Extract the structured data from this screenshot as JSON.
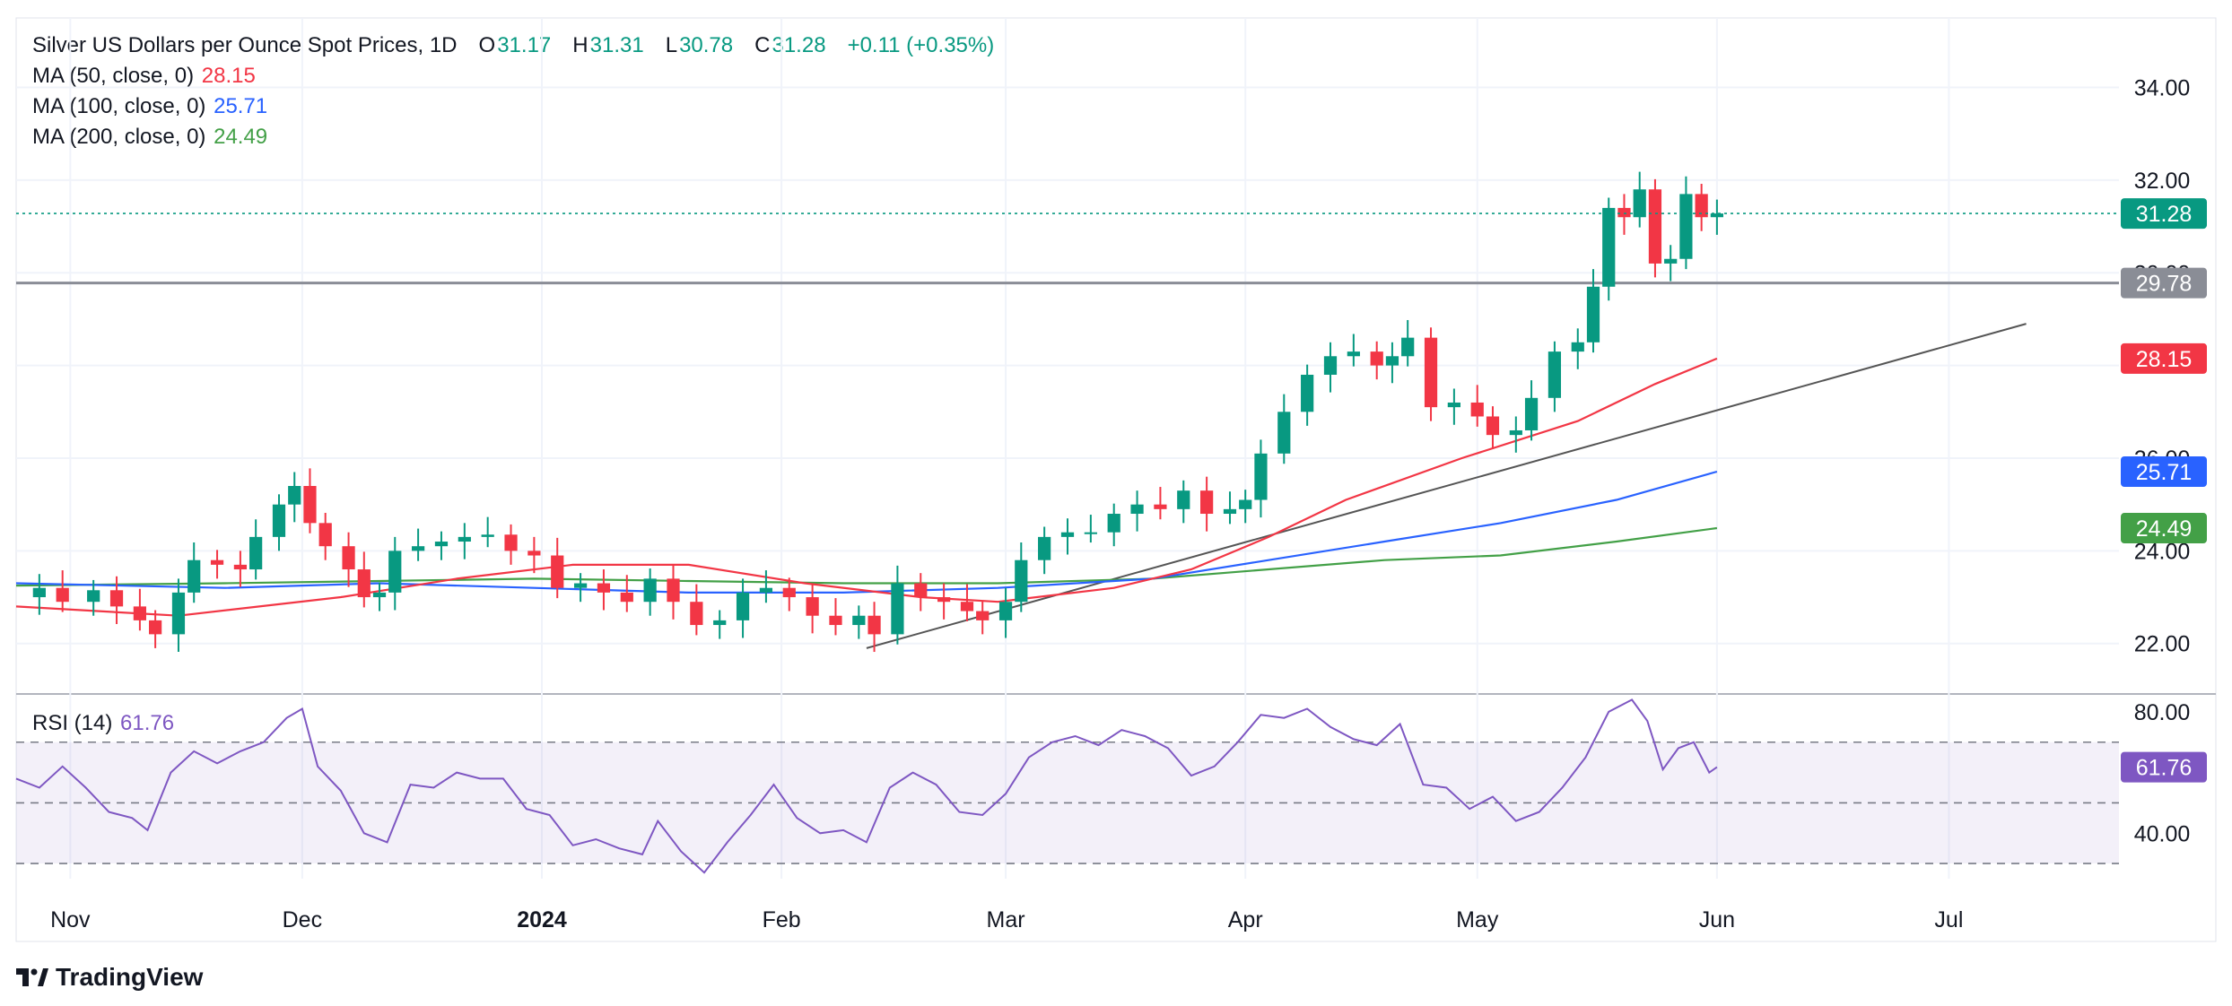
{
  "header": {
    "symbol": "Silver US Dollars per Ounce Spot Prices, 1D",
    "o_label": "O",
    "o_value": "31.17",
    "h_label": "H",
    "h_value": "31.31",
    "l_label": "L",
    "l_value": "30.78",
    "c_label": "C",
    "c_value": "31.28",
    "change": "+0.11 (+0.35%)"
  },
  "indicators": {
    "ma50": {
      "label": "MA (50, close, 0)",
      "value": "28.15",
      "color": "#f23645"
    },
    "ma100": {
      "label": "MA (100, close, 0)",
      "value": "25.71",
      "color": "#2962ff"
    },
    "ma200": {
      "label": "MA (200, close, 0)",
      "value": "24.49",
      "color": "#43a047"
    },
    "rsi": {
      "label": "RSI (14)",
      "value": "61.76",
      "color": "#7e57c2"
    }
  },
  "branding": {
    "logo_text": "TradingView",
    "icon": "tradingview-logo-icon"
  },
  "colors": {
    "up": "#089981",
    "down": "#f23645",
    "grid": "#f0f3fa",
    "axis_text": "#131722",
    "resistance": "#8a8d96",
    "trendline": "#555555"
  },
  "chart_data": {
    "type": "candlestick",
    "title": "Silver US Dollars per Ounce Spot Prices, 1D",
    "price_axis": {
      "ticks": [
        "34.00",
        "32.00",
        "30.00",
        "28.00",
        "26.00",
        "24.00",
        "22.00"
      ],
      "range": [
        20.95,
        35.5
      ]
    },
    "rsi_axis": {
      "ticks": [
        "80.00",
        "40.00"
      ],
      "range": [
        25,
        85
      ],
      "levels": [
        70,
        50,
        30
      ]
    },
    "time_axis": {
      "labels": [
        "Nov",
        "Dec",
        "2024",
        "Feb",
        "Mar",
        "Apr",
        "May",
        "Jun",
        "Jul"
      ],
      "label_days": [
        0,
        30,
        61,
        92,
        121,
        152,
        182,
        213,
        243
      ],
      "day_range": [
        -7,
        265
      ]
    },
    "badges": [
      {
        "name": "last-price",
        "text": "31.28",
        "value": 31.28,
        "color": "#089981"
      },
      {
        "name": "resistance-level",
        "text": "29.78",
        "value": 29.78,
        "color": "#8a8d96"
      },
      {
        "name": "ma50",
        "text": "28.15",
        "value": 28.15,
        "color": "#f23645"
      },
      {
        "name": "ma100",
        "text": "25.71",
        "value": 25.71,
        "color": "#2962ff"
      },
      {
        "name": "ma200",
        "text": "24.49",
        "value": 24.49,
        "color": "#43a047"
      }
    ],
    "rsi_badge": {
      "text": "61.76",
      "value": 61.76,
      "color": "#7e57c2"
    },
    "resistance_line": {
      "value": 29.78,
      "label": "29.78"
    },
    "trendline": {
      "start": {
        "day": 103,
        "price": 21.9
      },
      "end": {
        "day": 253,
        "price": 28.9
      }
    },
    "price_points": [
      {
        "day": -7,
        "price": 23.0
      },
      {
        "day": -4,
        "price": 23.2
      },
      {
        "day": -1,
        "price": 22.9
      },
      {
        "day": 3,
        "price": 23.15
      },
      {
        "day": 6,
        "price": 22.8
      },
      {
        "day": 9,
        "price": 22.5
      },
      {
        "day": 11,
        "price": 22.2
      },
      {
        "day": 14,
        "price": 23.1
      },
      {
        "day": 16,
        "price": 23.8
      },
      {
        "day": 19,
        "price": 23.7
      },
      {
        "day": 22,
        "price": 23.6
      },
      {
        "day": 24,
        "price": 24.3
      },
      {
        "day": 27,
        "price": 25.0
      },
      {
        "day": 29,
        "price": 25.4
      },
      {
        "day": 31,
        "price": 24.6
      },
      {
        "day": 33,
        "price": 24.1
      },
      {
        "day": 36,
        "price": 23.6
      },
      {
        "day": 38,
        "price": 23.0
      },
      {
        "day": 40,
        "price": 23.1
      },
      {
        "day": 42,
        "price": 24.0
      },
      {
        "day": 45,
        "price": 24.1
      },
      {
        "day": 48,
        "price": 24.2
      },
      {
        "day": 51,
        "price": 24.3
      },
      {
        "day": 54,
        "price": 24.35
      },
      {
        "day": 57,
        "price": 24.0
      },
      {
        "day": 60,
        "price": 23.9
      },
      {
        "day": 63,
        "price": 23.2
      },
      {
        "day": 66,
        "price": 23.3
      },
      {
        "day": 69,
        "price": 23.1
      },
      {
        "day": 72,
        "price": 22.9
      },
      {
        "day": 75,
        "price": 23.4
      },
      {
        "day": 78,
        "price": 22.9
      },
      {
        "day": 81,
        "price": 22.4
      },
      {
        "day": 84,
        "price": 22.5
      },
      {
        "day": 87,
        "price": 23.1
      },
      {
        "day": 90,
        "price": 23.2
      },
      {
        "day": 93,
        "price": 23.0
      },
      {
        "day": 96,
        "price": 22.6
      },
      {
        "day": 99,
        "price": 22.4
      },
      {
        "day": 102,
        "price": 22.6
      },
      {
        "day": 104,
        "price": 22.2
      },
      {
        "day": 107,
        "price": 23.3
      },
      {
        "day": 110,
        "price": 23.0
      },
      {
        "day": 113,
        "price": 22.9
      },
      {
        "day": 116,
        "price": 22.7
      },
      {
        "day": 118,
        "price": 22.5
      },
      {
        "day": 121,
        "price": 22.9
      },
      {
        "day": 123,
        "price": 23.8
      },
      {
        "day": 126,
        "price": 24.3
      },
      {
        "day": 129,
        "price": 24.4
      },
      {
        "day": 132,
        "price": 24.4
      },
      {
        "day": 135,
        "price": 24.8
      },
      {
        "day": 138,
        "price": 25.0
      },
      {
        "day": 141,
        "price": 24.9
      },
      {
        "day": 144,
        "price": 25.3
      },
      {
        "day": 147,
        "price": 24.8
      },
      {
        "day": 150,
        "price": 24.9
      },
      {
        "day": 152,
        "price": 25.1
      },
      {
        "day": 154,
        "price": 26.1
      },
      {
        "day": 157,
        "price": 27.0
      },
      {
        "day": 160,
        "price": 27.8
      },
      {
        "day": 163,
        "price": 28.2
      },
      {
        "day": 166,
        "price": 28.3
      },
      {
        "day": 169,
        "price": 28.0
      },
      {
        "day": 171,
        "price": 28.2
      },
      {
        "day": 173,
        "price": 28.6
      },
      {
        "day": 176,
        "price": 27.1
      },
      {
        "day": 179,
        "price": 27.2
      },
      {
        "day": 182,
        "price": 26.9
      },
      {
        "day": 184,
        "price": 26.5
      },
      {
        "day": 187,
        "price": 26.6
      },
      {
        "day": 189,
        "price": 27.3
      },
      {
        "day": 192,
        "price": 28.3
      },
      {
        "day": 195,
        "price": 28.5
      },
      {
        "day": 197,
        "price": 29.7
      },
      {
        "day": 199,
        "price": 31.4
      },
      {
        "day": 201,
        "price": 31.2
      },
      {
        "day": 203,
        "price": 31.8
      },
      {
        "day": 205,
        "price": 30.2
      },
      {
        "day": 207,
        "price": 30.3
      },
      {
        "day": 209,
        "price": 31.7
      },
      {
        "day": 211,
        "price": 31.2
      },
      {
        "day": 213,
        "price": 31.28
      }
    ],
    "candle_style": {
      "up": "#089981",
      "down": "#f23645"
    },
    "ma50": {
      "name": "MA 50",
      "points": [
        [
          -7,
          22.8
        ],
        [
          14,
          22.6
        ],
        [
          35,
          23.0
        ],
        [
          50,
          23.4
        ],
        [
          65,
          23.7
        ],
        [
          80,
          23.7
        ],
        [
          95,
          23.3
        ],
        [
          110,
          23.0
        ],
        [
          120,
          22.9
        ],
        [
          135,
          23.2
        ],
        [
          145,
          23.6
        ],
        [
          155,
          24.3
        ],
        [
          165,
          25.1
        ],
        [
          180,
          26.0
        ],
        [
          195,
          26.8
        ],
        [
          205,
          27.6
        ],
        [
          213,
          28.15
        ]
      ],
      "color": "#f23645"
    },
    "ma100": {
      "name": "MA 100",
      "points": [
        [
          -7,
          23.3
        ],
        [
          20,
          23.2
        ],
        [
          40,
          23.3
        ],
        [
          60,
          23.2
        ],
        [
          80,
          23.1
        ],
        [
          100,
          23.1
        ],
        [
          120,
          23.2
        ],
        [
          140,
          23.4
        ],
        [
          155,
          23.8
        ],
        [
          170,
          24.2
        ],
        [
          185,
          24.6
        ],
        [
          200,
          25.1
        ],
        [
          213,
          25.71
        ]
      ],
      "color": "#2962ff"
    },
    "ma200": {
      "name": "MA 200",
      "points": [
        [
          -7,
          23.25
        ],
        [
          20,
          23.3
        ],
        [
          40,
          23.35
        ],
        [
          60,
          23.4
        ],
        [
          80,
          23.35
        ],
        [
          100,
          23.3
        ],
        [
          120,
          23.3
        ],
        [
          140,
          23.4
        ],
        [
          155,
          23.6
        ],
        [
          170,
          23.8
        ],
        [
          185,
          23.9
        ],
        [
          200,
          24.2
        ],
        [
          213,
          24.49
        ]
      ],
      "color": "#43a047"
    },
    "rsi": {
      "name": "RSI (14)",
      "points": [
        [
          -7,
          58
        ],
        [
          -4,
          55
        ],
        [
          -1,
          62
        ],
        [
          2,
          55
        ],
        [
          5,
          47
        ],
        [
          8,
          45
        ],
        [
          10,
          41
        ],
        [
          13,
          60
        ],
        [
          16,
          67
        ],
        [
          19,
          63
        ],
        [
          22,
          67
        ],
        [
          25,
          70
        ],
        [
          28,
          78
        ],
        [
          30,
          81
        ],
        [
          32,
          62
        ],
        [
          35,
          54
        ],
        [
          38,
          40
        ],
        [
          41,
          37
        ],
        [
          44,
          56
        ],
        [
          47,
          55
        ],
        [
          50,
          60
        ],
        [
          53,
          58
        ],
        [
          56,
          58
        ],
        [
          59,
          48
        ],
        [
          62,
          46
        ],
        [
          65,
          36
        ],
        [
          68,
          38
        ],
        [
          71,
          35
        ],
        [
          74,
          33
        ],
        [
          76,
          44
        ],
        [
          79,
          34
        ],
        [
          82,
          27
        ],
        [
          85,
          37
        ],
        [
          88,
          46
        ],
        [
          91,
          56
        ],
        [
          94,
          45
        ],
        [
          97,
          40
        ],
        [
          100,
          41
        ],
        [
          103,
          37
        ],
        [
          106,
          55
        ],
        [
          109,
          60
        ],
        [
          112,
          56
        ],
        [
          115,
          47
        ],
        [
          118,
          46
        ],
        [
          121,
          53
        ],
        [
          124,
          65
        ],
        [
          127,
          70
        ],
        [
          130,
          72
        ],
        [
          133,
          69
        ],
        [
          136,
          74
        ],
        [
          139,
          72
        ],
        [
          142,
          68
        ],
        [
          145,
          59
        ],
        [
          148,
          62
        ],
        [
          151,
          70
        ],
        [
          154,
          79
        ],
        [
          157,
          78
        ],
        [
          160,
          81
        ],
        [
          163,
          75
        ],
        [
          166,
          71
        ],
        [
          169,
          69
        ],
        [
          172,
          76
        ],
        [
          175,
          56
        ],
        [
          178,
          55
        ],
        [
          181,
          48
        ],
        [
          184,
          52
        ],
        [
          187,
          44
        ],
        [
          190,
          47
        ],
        [
          193,
          55
        ],
        [
          196,
          65
        ],
        [
          199,
          80
        ],
        [
          202,
          84
        ],
        [
          204,
          77
        ],
        [
          206,
          61
        ],
        [
          208,
          68
        ],
        [
          210,
          70
        ],
        [
          212,
          60
        ],
        [
          213,
          61.76
        ]
      ],
      "color": "#7e57c2"
    }
  }
}
